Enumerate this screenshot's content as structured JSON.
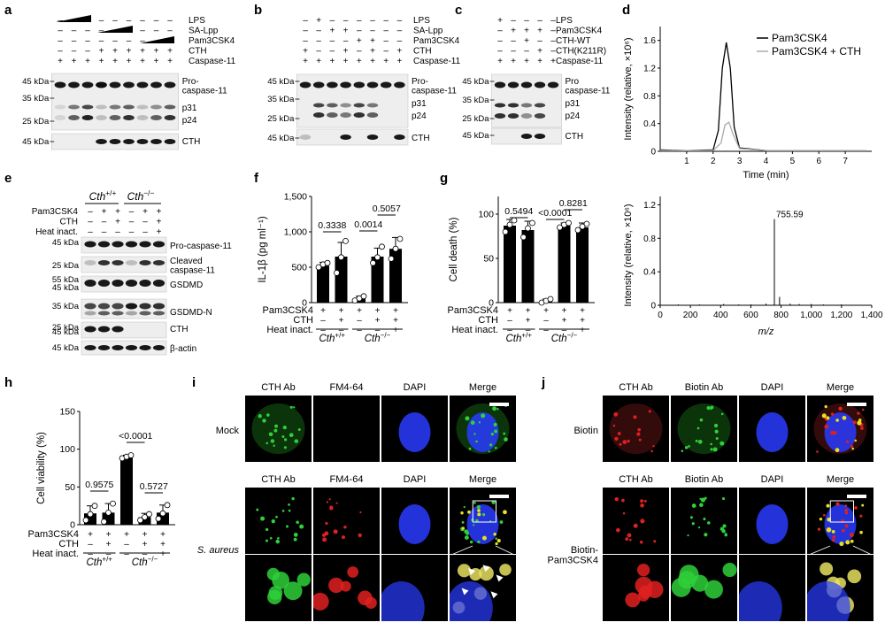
{
  "panel_labels": {
    "a": "a",
    "b": "b",
    "c": "c",
    "d": "d",
    "e": "e",
    "f": "f",
    "g": "g",
    "h": "h",
    "i": "i",
    "j": "j"
  },
  "blot_a": {
    "rows": [
      "LPS",
      "SA-Lpp",
      "Pam3CSK4",
      "CTH",
      "Caspase-11"
    ],
    "signs": [
      [
        "-",
        "-",
        "-",
        "-",
        "-",
        "-",
        "-",
        "-",
        "-"
      ],
      [
        "-",
        "-",
        "-",
        "-",
        "-",
        "-",
        "-",
        "-",
        "-"
      ],
      [
        "-",
        "-",
        "-",
        "-",
        "-",
        "-",
        "-",
        "-",
        "-"
      ],
      [
        "-",
        "-",
        "-",
        "+",
        "+",
        "+",
        "+",
        "+",
        "+"
      ],
      [
        "+",
        "+",
        "+",
        "+",
        "+",
        "+",
        "+",
        "+",
        "+"
      ]
    ],
    "kda": [
      "45 kDa",
      "35 kDa",
      "25 kDa",
      "45 kDa"
    ],
    "bands": [
      "Pro-\ncaspase-11",
      "p31",
      "p24",
      "CTH"
    ]
  },
  "blot_b": {
    "rows": [
      "LPS",
      "SA-Lpp",
      "Pam3CSK4",
      "CTH",
      "Caspase-11"
    ],
    "signs": [
      [
        "-",
        "+",
        "-",
        "-",
        "-",
        "-",
        "-",
        "-"
      ],
      [
        "-",
        "-",
        "+",
        "+",
        "-",
        "-",
        "-",
        "-"
      ],
      [
        "-",
        "-",
        "-",
        "-",
        "+",
        "+",
        "-",
        "-"
      ],
      [
        "+",
        "-",
        "-",
        "+",
        "-",
        "+",
        "-",
        "+"
      ],
      [
        "+",
        "+",
        "+",
        "+",
        "+",
        "+",
        "+",
        "+"
      ]
    ],
    "kda": [
      "45 kDa",
      "35 kDa",
      "25 kDa",
      "45 kDa"
    ],
    "bands": [
      "Pro-\ncaspase-11",
      "p31",
      "p24",
      "CTH"
    ]
  },
  "blot_c": {
    "rows": [
      "LPS",
      "Pam3CSK4",
      "CTH-WT",
      "CTH(K211R)",
      "Caspase-11"
    ],
    "signs": [
      [
        "+",
        "-",
        "-",
        "-",
        "-"
      ],
      [
        "-",
        "+",
        "+",
        "+",
        "-"
      ],
      [
        "-",
        "-",
        "+",
        "-",
        "-"
      ],
      [
        "-",
        "-",
        "-",
        "+",
        "-"
      ],
      [
        "+",
        "+",
        "+",
        "+",
        "+"
      ]
    ],
    "kda": [
      "45 kDa",
      "35 kDa",
      "25 kDa",
      "45 kDa"
    ],
    "bands": [
      "Pro\ncaspase-11",
      "p31",
      "p24",
      "CTH"
    ]
  },
  "panel_d_top": {
    "legend": [
      "Pam3CSK4",
      "Pam3CSK4 + CTH"
    ],
    "ylabel": "Intensity (relative, ×10⁶)",
    "xlabel": "Time (min)",
    "yticks": [
      "0",
      "0.4",
      "0.8",
      "1.2",
      "1.6"
    ],
    "xticks": [
      "1",
      "2",
      "3",
      "4",
      "5",
      "6",
      "7"
    ]
  },
  "panel_d_bottom": {
    "ylabel": "Intensity (relative, ×10⁶)",
    "xlabel": "m/z",
    "yticks": [
      "0",
      "0.4",
      "0.8",
      "1.2"
    ],
    "xticks": [
      "0",
      "200",
      "400",
      "600",
      "800",
      "1,000",
      "1,200",
      "1,400"
    ],
    "peak_label": "755.59"
  },
  "blot_e": {
    "genotype1": "Cth+/+",
    "genotype2": "Cth−/−",
    "rows": [
      "Pam3CSK4",
      "CTH",
      "Heat inact."
    ],
    "signs": [
      [
        "-",
        "+",
        "+",
        "-",
        "+",
        "+"
      ],
      [
        "-",
        "-",
        "+",
        "-",
        "-",
        "+"
      ],
      [
        "-",
        "-",
        "-",
        "-",
        "-",
        "+"
      ]
    ],
    "kda": [
      "45 kDa",
      "25 kDa",
      "55 kDa",
      "45 kDa",
      "35 kDa",
      "25 kDa",
      "45 kDa",
      "45 kDa"
    ],
    "bands": [
      "Pro-caspase-11",
      "Cleaved\ncaspase-11",
      "GSDMD",
      "GSDMD-N",
      "CTH",
      "β-actin"
    ]
  },
  "panel_f": {
    "ylabel": "IL-1β (pg ml⁻¹)",
    "yticks": [
      "0",
      "500",
      "1,000",
      "1,500"
    ],
    "pvalues": [
      "0.3338",
      "0.0014",
      "0.5057"
    ],
    "rows": [
      "Pam3CSK4",
      "CTH",
      "Heat inact."
    ],
    "signs": [
      [
        "+",
        "+",
        "+",
        "+",
        "+"
      ],
      [
        "-",
        "+",
        "-",
        "+",
        "+"
      ],
      [
        "-",
        "-",
        "-",
        "-",
        "+"
      ]
    ],
    "genotypes": [
      "Cth+/+",
      "Cth−/−"
    ]
  },
  "panel_g": {
    "ylabel": "Cell death (%)",
    "yticks": [
      "0",
      "50",
      "100"
    ],
    "pvalues": [
      "0.5494",
      "<0.0001",
      "0.8281"
    ],
    "rows": [
      "Pam3CSK4",
      "CTH",
      "Heat inact."
    ],
    "signs": [
      [
        "+",
        "+",
        "+",
        "+",
        "+"
      ],
      [
        "-",
        "+",
        "-",
        "+",
        "+"
      ],
      [
        "-",
        "-",
        "-",
        "-",
        "+"
      ]
    ],
    "genotypes": [
      "Cth+/+",
      "Cth−/−"
    ]
  },
  "panel_h": {
    "ylabel": "Cell viability (%)",
    "yticks": [
      "0",
      "50",
      "100",
      "150"
    ],
    "pvalues": [
      "0.9575",
      "<0.0001",
      "0.5727"
    ],
    "rows": [
      "Pam3CSK4",
      "CTH",
      "Heat inact."
    ],
    "signs": [
      [
        "+",
        "+",
        "+",
        "+",
        "+"
      ],
      [
        "-",
        "+",
        "-",
        "+",
        "+"
      ],
      [
        "-",
        "-",
        "-",
        "-",
        "+"
      ]
    ],
    "genotypes": [
      "Cth+/+",
      "Cth−/−"
    ]
  },
  "panel_i": {
    "columns": [
      "CTH Ab",
      "FM4-64",
      "DAPI",
      "Merge"
    ],
    "rows": [
      "Mock",
      "S. aureus"
    ]
  },
  "panel_j": {
    "columns": [
      "CTH Ab",
      "Biotin Ab",
      "DAPI",
      "Merge"
    ],
    "rows": [
      "Biotin",
      "Biotin-\nPam3CSK4"
    ]
  },
  "colors": {
    "green": "#2fd03a",
    "red": "#e02020",
    "blue": "#2a3cff",
    "bar": "#000000"
  },
  "chart_data": [
    {
      "type": "line",
      "title": "",
      "xlabel": "Time (min)",
      "ylabel": "Intensity (relative, ×10⁶)",
      "xlim": [
        0,
        8
      ],
      "ylim": [
        0,
        1.8
      ],
      "series": [
        {
          "name": "Pam3CSK4",
          "x": [
            0,
            1,
            2,
            2.2,
            2.35,
            2.5,
            2.65,
            2.8,
            3,
            4,
            5,
            6,
            7,
            7.8
          ],
          "y": [
            0.02,
            0.01,
            0.02,
            0.3,
            1.2,
            1.57,
            1.2,
            0.35,
            0.05,
            0.01,
            0.01,
            0.01,
            0.01,
            0.01
          ]
        },
        {
          "name": "Pam3CSK4 + CTH",
          "x": [
            0,
            1,
            2,
            2.3,
            2.45,
            2.6,
            2.75,
            3,
            4,
            5,
            6,
            7,
            7.8
          ],
          "y": [
            0.01,
            0.01,
            0.01,
            0.12,
            0.38,
            0.42,
            0.25,
            0.04,
            0.01,
            0.01,
            0.01,
            0.01,
            0.01
          ]
        }
      ]
    },
    {
      "type": "bar",
      "title": "",
      "xlabel": "m/z",
      "ylabel": "Intensity (relative, ×10⁶)",
      "xlim": [
        0,
        1400
      ],
      "ylim": [
        0,
        1.3
      ],
      "x": [
        120,
        260,
        420,
        520,
        600,
        700,
        755.59,
        790,
        860,
        920,
        1000,
        1080,
        1200,
        1300
      ],
      "y": [
        0.01,
        0.01,
        0.015,
        0.01,
        0.01,
        0.02,
        1.03,
        0.1,
        0.02,
        0.015,
        0.015,
        0.01,
        0.01,
        0.005
      ]
    },
    {
      "type": "bar",
      "title": "",
      "ylabel": "IL-1β (pg ml⁻¹)",
      "ylim": [
        0,
        1500
      ],
      "values": [
        520,
        650,
        60,
        650,
        760
      ],
      "errors": [
        50,
        200,
        30,
        120,
        160
      ],
      "points": [
        [
          500,
          540,
          560
        ],
        [
          420,
          640,
          870
        ],
        [
          30,
          60,
          90
        ],
        [
          560,
          640,
          790
        ],
        [
          620,
          760,
          900
        ]
      ]
    },
    {
      "type": "bar",
      "title": "",
      "ylabel": "Cell death (%)",
      "ylim": [
        0,
        120
      ],
      "values": [
        87,
        82,
        2,
        87,
        85
      ],
      "errors": [
        7,
        10,
        2,
        3,
        5
      ],
      "points": [
        [
          80,
          88,
          93
        ],
        [
          74,
          84,
          90
        ],
        [
          0,
          2,
          4
        ],
        [
          85,
          88,
          90
        ],
        [
          82,
          86,
          89
        ]
      ]
    },
    {
      "type": "bar",
      "title": "",
      "ylabel": "Cell viability (%)",
      "ylim": [
        0,
        150
      ],
      "values": [
        15,
        16,
        90,
        10,
        16
      ],
      "errors": [
        10,
        12,
        2,
        5,
        10
      ],
      "points": [
        [
          6,
          14,
          25
        ],
        [
          4,
          16,
          28
        ],
        [
          88,
          90,
          92
        ],
        [
          6,
          10,
          14
        ],
        [
          8,
          15,
          26
        ]
      ]
    }
  ]
}
